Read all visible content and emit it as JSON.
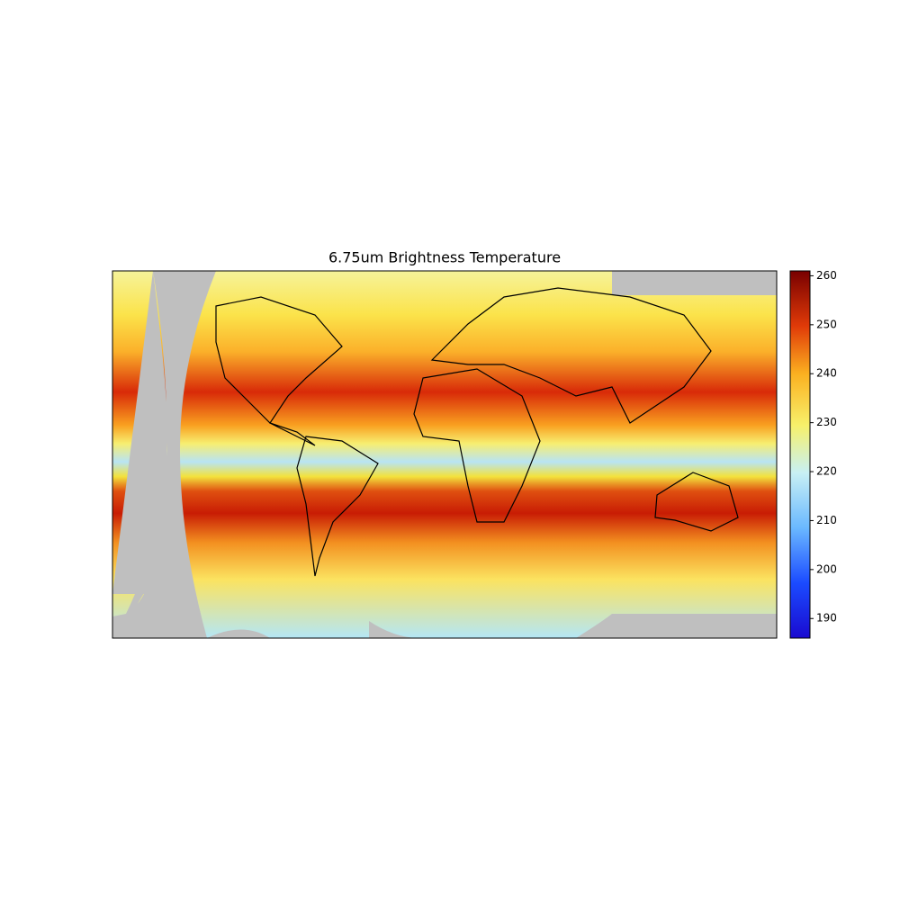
{
  "title": "6.75um Brightness Temperature",
  "colorbar": {
    "lim": [
      186,
      261
    ],
    "ticks": [
      190,
      200,
      210,
      220,
      230,
      240,
      250,
      260
    ]
  }
}
